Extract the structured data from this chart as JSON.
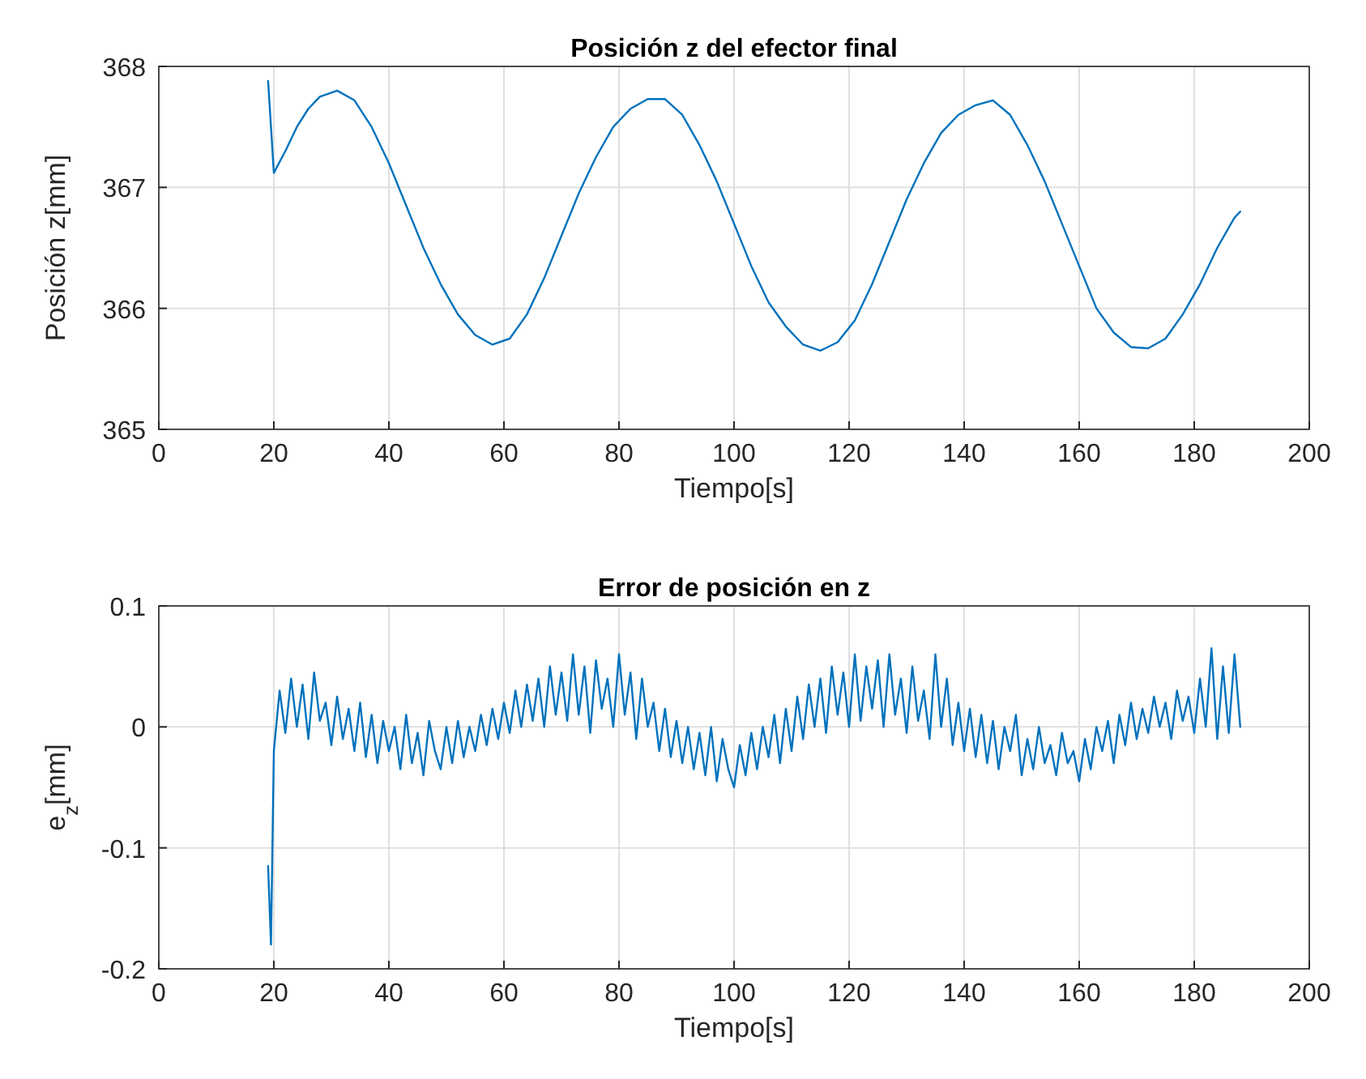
{
  "chart_data": [
    {
      "type": "line",
      "title": "Posición z del efector final",
      "xlabel": "Tiempo[s]",
      "ylabel": "Posición z[mm]",
      "xlim": [
        0,
        200
      ],
      "xticks": [
        0,
        20,
        40,
        60,
        80,
        100,
        120,
        140,
        160,
        180,
        200
      ],
      "ylim": [
        365,
        368
      ],
      "yticks": [
        365,
        366,
        367,
        368
      ],
      "grid": true,
      "series": [
        {
          "color": "#0072bd",
          "x": [
            19,
            19.5,
            20,
            22,
            24,
            26,
            28,
            31,
            34,
            37,
            40,
            43,
            46,
            49,
            52,
            55,
            58,
            61,
            64,
            67,
            70,
            73,
            76,
            79,
            82,
            85,
            88,
            91,
            94,
            97,
            100,
            103,
            106,
            109,
            112,
            115,
            118,
            121,
            124,
            127,
            130,
            133,
            136,
            139,
            142,
            145,
            148,
            151,
            154,
            157,
            160,
            163,
            166,
            169,
            172,
            175,
            178,
            181,
            184,
            187,
            188
          ],
          "values": [
            367.88,
            367.5,
            367.12,
            367.3,
            367.5,
            367.65,
            367.75,
            367.8,
            367.72,
            367.5,
            367.2,
            366.85,
            366.5,
            366.2,
            365.95,
            365.78,
            365.7,
            365.75,
            365.95,
            366.25,
            366.6,
            366.95,
            367.25,
            367.5,
            367.65,
            367.73,
            367.73,
            367.6,
            367.35,
            367.05,
            366.7,
            366.35,
            366.05,
            365.85,
            365.7,
            365.65,
            365.72,
            365.9,
            366.2,
            366.55,
            366.9,
            367.2,
            367.45,
            367.6,
            367.68,
            367.72,
            367.6,
            367.35,
            367.05,
            366.7,
            366.35,
            366.0,
            365.8,
            365.68,
            365.67,
            365.75,
            365.95,
            366.2,
            366.5,
            366.75,
            366.8
          ]
        }
      ]
    },
    {
      "type": "line",
      "title": "Error de posición en z",
      "xlabel": "Tiempo[s]",
      "ylabel": "e$_{z}$[mm]",
      "xlim": [
        0,
        200
      ],
      "xticks": [
        0,
        20,
        40,
        60,
        80,
        100,
        120,
        140,
        160,
        180,
        200
      ],
      "ylim": [
        -0.2,
        0.1
      ],
      "yticks": [
        -0.2,
        -0.1,
        0,
        0.1
      ],
      "grid": true,
      "series": [
        {
          "color": "#0072bd",
          "x": [
            19,
            19.5,
            20,
            21,
            22,
            23,
            24,
            25,
            26,
            27,
            28,
            29,
            30,
            31,
            32,
            33,
            34,
            35,
            36,
            37,
            38,
            39,
            40,
            41,
            42,
            43,
            44,
            45,
            46,
            47,
            48,
            49,
            50,
            51,
            52,
            53,
            54,
            55,
            56,
            57,
            58,
            59,
            60,
            61,
            62,
            63,
            64,
            65,
            66,
            67,
            68,
            69,
            70,
            71,
            72,
            73,
            74,
            75,
            76,
            77,
            78,
            79,
            80,
            81,
            82,
            83,
            84,
            85,
            86,
            87,
            88,
            89,
            90,
            91,
            92,
            93,
            94,
            95,
            96,
            97,
            98,
            99,
            100,
            101,
            102,
            103,
            104,
            105,
            106,
            107,
            108,
            109,
            110,
            111,
            112,
            113,
            114,
            115,
            116,
            117,
            118,
            119,
            120,
            121,
            122,
            123,
            124,
            125,
            126,
            127,
            128,
            129,
            130,
            131,
            132,
            133,
            134,
            135,
            136,
            137,
            138,
            139,
            140,
            141,
            142,
            143,
            144,
            145,
            146,
            147,
            148,
            149,
            150,
            151,
            152,
            153,
            154,
            155,
            156,
            157,
            158,
            159,
            160,
            161,
            162,
            163,
            164,
            165,
            166,
            167,
            168,
            169,
            170,
            171,
            172,
            173,
            174,
            175,
            176,
            177,
            178,
            179,
            180,
            181,
            182,
            183,
            184,
            185,
            186,
            187,
            188
          ],
          "values": [
            -0.115,
            -0.18,
            -0.02,
            0.03,
            -0.005,
            0.04,
            0.0,
            0.035,
            -0.01,
            0.045,
            0.005,
            0.02,
            -0.015,
            0.025,
            -0.01,
            0.015,
            -0.02,
            0.02,
            -0.025,
            0.01,
            -0.03,
            0.005,
            -0.02,
            0.0,
            -0.035,
            0.01,
            -0.03,
            -0.005,
            -0.04,
            0.005,
            -0.02,
            -0.035,
            0.0,
            -0.03,
            0.005,
            -0.025,
            0.0,
            -0.02,
            0.01,
            -0.015,
            0.015,
            -0.01,
            0.02,
            -0.005,
            0.03,
            0.0,
            0.035,
            0.005,
            0.04,
            0.0,
            0.05,
            0.01,
            0.045,
            0.005,
            0.06,
            0.01,
            0.05,
            -0.005,
            0.055,
            0.015,
            0.04,
            0.0,
            0.06,
            0.01,
            0.045,
            -0.01,
            0.04,
            0.0,
            0.02,
            -0.02,
            0.015,
            -0.025,
            0.005,
            -0.03,
            0.0,
            -0.035,
            -0.005,
            -0.04,
            0.0,
            -0.045,
            -0.01,
            -0.035,
            -0.05,
            -0.015,
            -0.04,
            -0.005,
            -0.035,
            0.0,
            -0.025,
            0.01,
            -0.03,
            0.015,
            -0.02,
            0.025,
            -0.01,
            0.035,
            0.0,
            0.04,
            -0.005,
            0.05,
            0.01,
            0.045,
            0.0,
            0.06,
            0.005,
            0.05,
            0.015,
            0.055,
            0.0,
            0.06,
            0.01,
            0.04,
            -0.005,
            0.05,
            0.005,
            0.03,
            -0.01,
            0.06,
            0.0,
            0.04,
            -0.015,
            0.02,
            -0.02,
            0.015,
            -0.025,
            0.01,
            -0.03,
            0.005,
            -0.035,
            0.0,
            -0.02,
            0.01,
            -0.04,
            -0.01,
            -0.035,
            0.0,
            -0.03,
            -0.015,
            -0.04,
            -0.005,
            -0.03,
            -0.02,
            -0.045,
            -0.01,
            -0.035,
            0.0,
            -0.02,
            0.005,
            -0.03,
            0.01,
            -0.015,
            0.02,
            -0.01,
            0.015,
            -0.005,
            0.025,
            0.0,
            0.02,
            -0.01,
            0.03,
            0.005,
            0.025,
            -0.005,
            0.04,
            0.0,
            0.065,
            -0.01,
            0.05,
            -0.005,
            0.06,
            0.0
          ]
        }
      ]
    }
  ]
}
